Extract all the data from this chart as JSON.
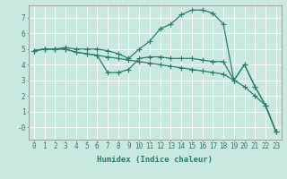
{
  "line1_x": [
    0,
    1,
    2,
    3,
    4,
    5,
    6,
    7,
    8,
    9,
    10,
    11,
    12,
    13,
    14,
    15,
    16,
    17,
    18,
    19,
    20,
    21,
    22,
    23
  ],
  "line1_y": [
    4.9,
    5.0,
    5.0,
    5.1,
    5.0,
    5.0,
    5.0,
    4.9,
    4.7,
    4.4,
    5.0,
    5.5,
    6.3,
    6.6,
    7.2,
    7.5,
    7.5,
    7.3,
    6.6,
    3.0,
    4.0,
    2.6,
    1.4,
    -0.3
  ],
  "line2_x": [
    0,
    1,
    2,
    3,
    4,
    5,
    6,
    7,
    8,
    9,
    10,
    11,
    12,
    13,
    14,
    15,
    16,
    17,
    18,
    19,
    20,
    21,
    22,
    23
  ],
  "line2_y": [
    4.9,
    5.0,
    5.0,
    5.0,
    4.8,
    4.7,
    4.6,
    3.5,
    3.5,
    3.7,
    4.4,
    4.5,
    4.5,
    4.4,
    4.4,
    4.4,
    4.3,
    4.2,
    4.2,
    3.0,
    4.0,
    2.6,
    1.4,
    -0.3
  ],
  "line3_x": [
    0,
    1,
    2,
    3,
    4,
    5,
    6,
    7,
    8,
    9,
    10,
    11,
    12,
    13,
    14,
    15,
    16,
    17,
    18,
    19,
    20,
    21,
    22,
    23
  ],
  "line3_y": [
    4.9,
    5.0,
    5.0,
    5.0,
    4.8,
    4.7,
    4.6,
    4.5,
    4.4,
    4.3,
    4.2,
    4.1,
    4.0,
    3.9,
    3.8,
    3.7,
    3.6,
    3.5,
    3.4,
    3.0,
    2.6,
    2.0,
    1.4,
    -0.3
  ],
  "line_color": "#2E7D6B",
  "bg_color": "#C8E8E0",
  "grid_color": "#FFFFFF",
  "xlabel": "Humidex (Indice chaleur)",
  "xlim": [
    -0.5,
    23.5
  ],
  "ylim": [
    -0.8,
    7.8
  ],
  "yticks": [
    0,
    1,
    2,
    3,
    4,
    5,
    6,
    7
  ],
  "ytick_labels": [
    "-0",
    "1",
    "2",
    "3",
    "4",
    "5",
    "6",
    "7"
  ],
  "xticks": [
    0,
    1,
    2,
    3,
    4,
    5,
    6,
    7,
    8,
    9,
    10,
    11,
    12,
    13,
    14,
    15,
    16,
    17,
    18,
    19,
    20,
    21,
    22,
    23
  ],
  "marker": "+",
  "markersize": 4,
  "linewidth": 0.9,
  "tick_fontsize": 5.5,
  "xlabel_fontsize": 6.5
}
